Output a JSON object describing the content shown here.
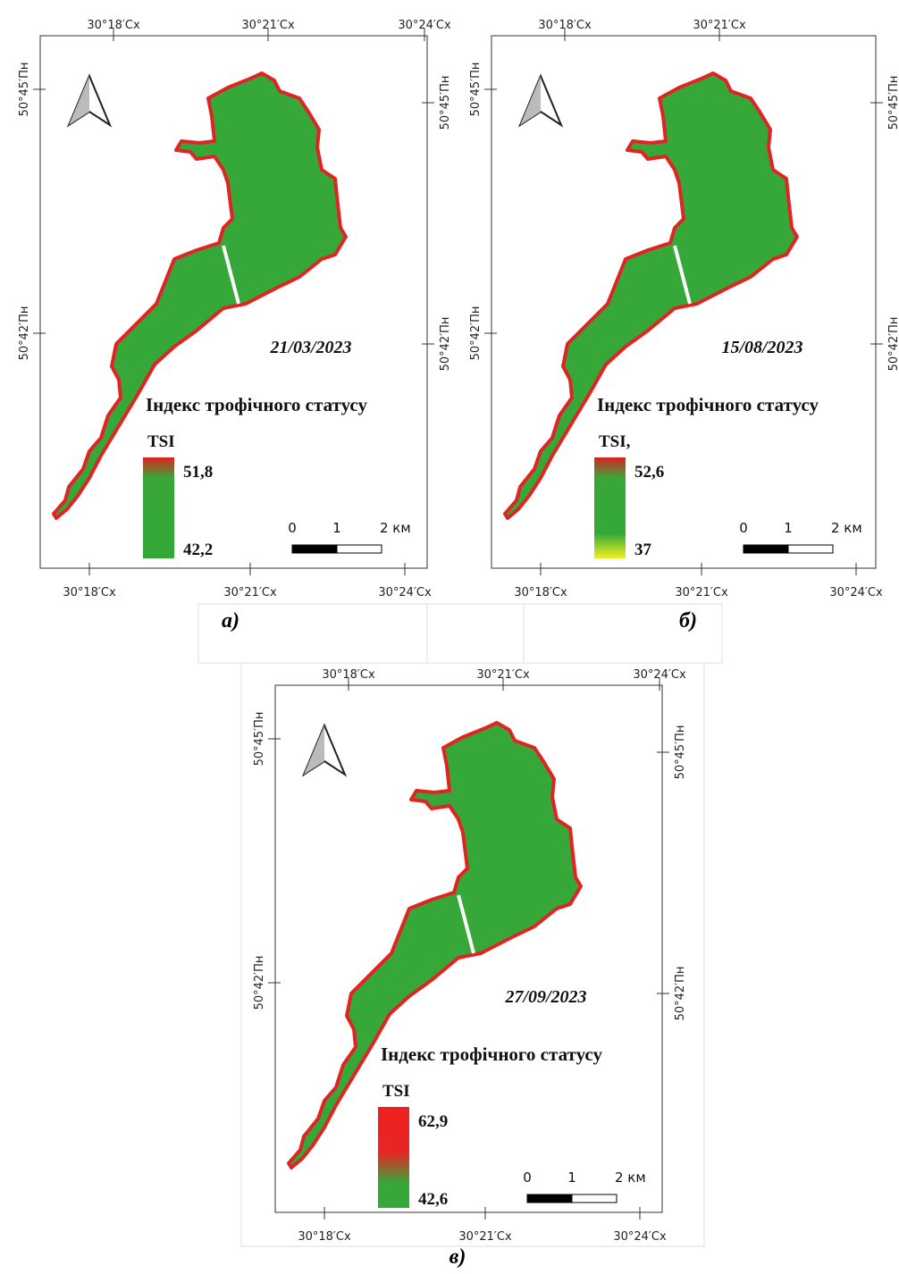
{
  "panels": [
    {
      "date": "21/03/2023",
      "legend_title": "Індекс трофічного статусу",
      "tsi_label": "TSI",
      "max": "51,8",
      "min": "42,2",
      "scale": [
        "0",
        "1",
        "2 км"
      ],
      "top_lon": [
        "30°18′Сх",
        "30°21′Сх",
        "30°24′Сх"
      ],
      "bottom_lon": [
        "30°18′Сх",
        "30°21′Сх",
        "30°24′Сх"
      ],
      "left_lat": [
        "50°45′Пн",
        "50°42′Пн"
      ],
      "right_lat": [
        "50°45′Пн",
        "50°42′Пн"
      ],
      "caption": "а)"
    },
    {
      "date": "15/08/2023",
      "legend_title": "Індекс трофічного статусу",
      "tsi_label": "TSI,",
      "max": "52,6",
      "min": "37",
      "scale": [
        "0",
        "1",
        "2 км"
      ],
      "top_lon": [
        "30°18′Сх",
        "30°21′Сх"
      ],
      "bottom_lon": [
        "30°18′Сх",
        "30°21′Сх",
        "30°24′Сх"
      ],
      "left_lat": [
        "50°45′Пн",
        "50°42′Пн"
      ],
      "right_lat": [
        "50°45′Пн",
        "50°42′Пн"
      ],
      "caption": "б)"
    },
    {
      "date": "27/09/2023",
      "legend_title": "Індекс трофічного статусу",
      "tsi_label": "TSI",
      "max": "62,9",
      "min": "42,6",
      "scale": [
        "0",
        "1",
        "2 км"
      ],
      "top_lon": [
        "30°18′Сх",
        "30°21′Сх",
        "30°24′Сх"
      ],
      "bottom_lon": [
        "30°18′Сх",
        "30°21′Сх",
        "30°24′Сх"
      ],
      "left_lat": [
        "50°45′Пн",
        "50°42′Пн"
      ],
      "right_lat": [
        "50°45′Пн",
        "50°42′Пн"
      ],
      "caption": "в)"
    }
  ]
}
